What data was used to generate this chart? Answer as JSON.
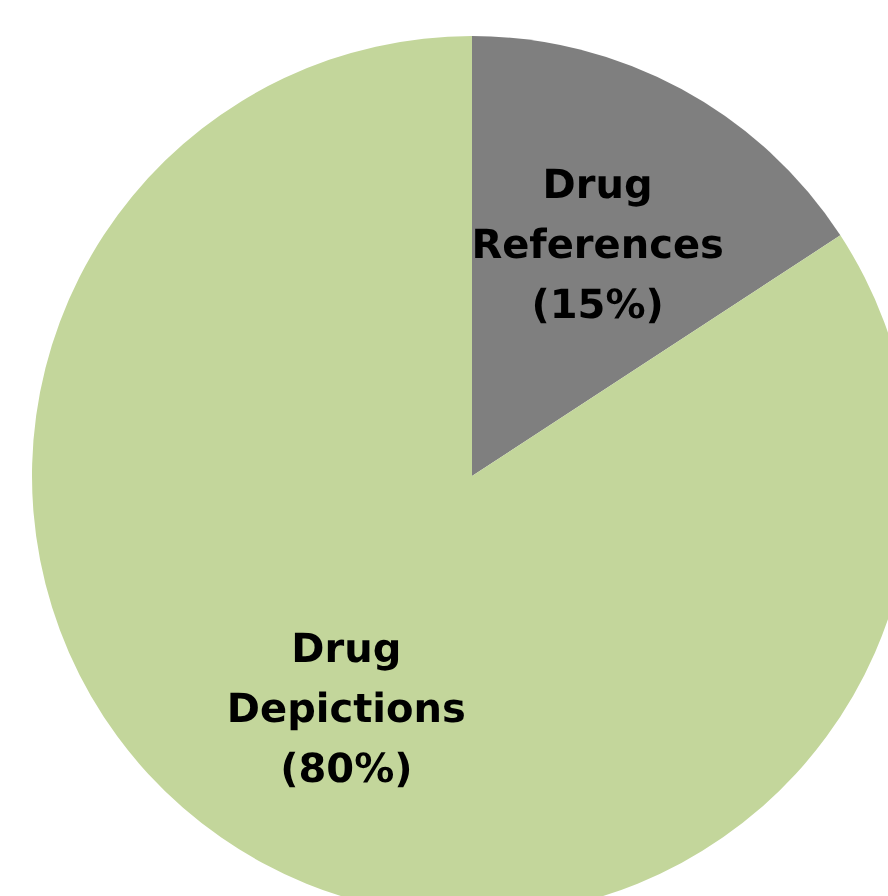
{
  "chart_data": {
    "type": "pie",
    "categories": [
      "Drug References",
      "Drug Depictions"
    ],
    "values": [
      15,
      80
    ],
    "value_labels": [
      "(15%)",
      "(80%)"
    ],
    "colors": [
      "#7f7f7f",
      "#c3d69b"
    ],
    "legend": false
  }
}
